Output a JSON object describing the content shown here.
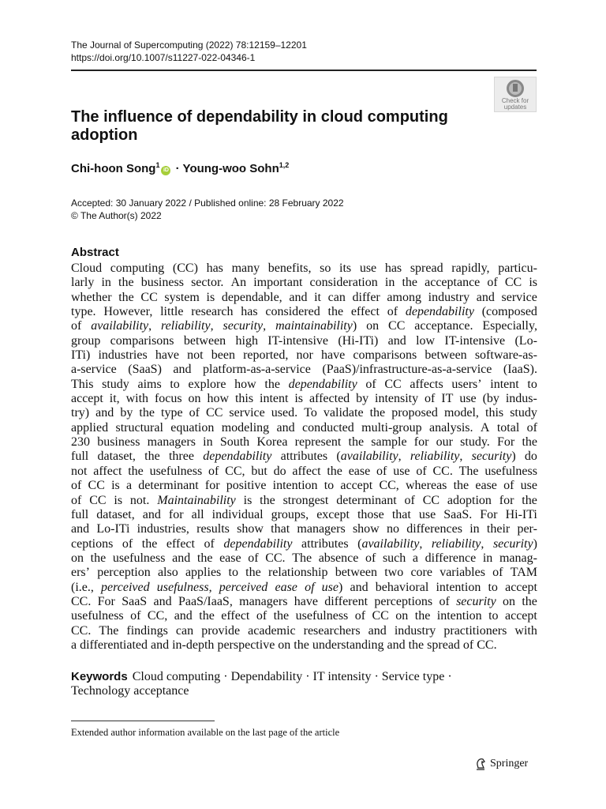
{
  "header": {
    "journal": "The Journal of Supercomputing (2022) 78:12159–12201",
    "doi": "https://doi.org/10.1007/s11227-022-04346-1"
  },
  "badge": {
    "line1": "Check for",
    "line2": "updates"
  },
  "title": "The influence of dependability in cloud computing adoption",
  "authors": [
    {
      "name": "Chi-hoon Song",
      "sup": "1",
      "orcid": true
    },
    {
      "name": "Young-woo Sohn",
      "sup": "1,2"
    }
  ],
  "author_separator": " · ",
  "orcid_label": "iD",
  "dates": {
    "line1": "Accepted: 30 January 2022 / Published online: 28 February 2022",
    "line2": "© The Author(s) 2022"
  },
  "abstract_heading": "Abstract",
  "abstract_lines": [
    [
      {
        "t": "Cloud computing (CC) has many benefits, so its use has spread rapidly, particu-"
      }
    ],
    [
      {
        "t": "larly in the business sector. An important consideration in the acceptance of CC is"
      }
    ],
    [
      {
        "t": "whether the CC system is dependable, and it can differ among industry and service"
      }
    ],
    [
      {
        "t": "type. However, little research has considered the effect of "
      },
      {
        "t": "dependability",
        "i": true
      },
      {
        "t": " (composed"
      }
    ],
    [
      {
        "t": "of "
      },
      {
        "t": "availability",
        "i": true
      },
      {
        "t": ", "
      },
      {
        "t": "reliability",
        "i": true
      },
      {
        "t": ", "
      },
      {
        "t": "security",
        "i": true
      },
      {
        "t": ", "
      },
      {
        "t": "maintainability",
        "i": true
      },
      {
        "t": ") on CC acceptance. Especially,"
      }
    ],
    [
      {
        "t": "group comparisons between high IT-intensive (Hi-ITi) and low IT-intensive (Lo-"
      }
    ],
    [
      {
        "t": "ITi) industries have not been reported, nor have comparisons between software-as-"
      }
    ],
    [
      {
        "t": "a-service (SaaS) and platform-as-a-service (PaaS)/infrastructure-as-a-service (IaaS)."
      }
    ],
    [
      {
        "t": "This study aims to explore how the "
      },
      {
        "t": "dependability",
        "i": true
      },
      {
        "t": " of CC affects users’ intent to"
      }
    ],
    [
      {
        "t": "accept it, with focus on how this intent is affected by intensity of IT use (by indus-"
      }
    ],
    [
      {
        "t": "try) and by the type of CC service used. To validate the proposed model, this study"
      }
    ],
    [
      {
        "t": "applied structural equation modeling and conducted multi-group analysis. A total of"
      }
    ],
    [
      {
        "t": "230 business managers in South Korea represent the sample for our study. For the"
      }
    ],
    [
      {
        "t": "full dataset, the three "
      },
      {
        "t": "dependability",
        "i": true
      },
      {
        "t": " attributes ("
      },
      {
        "t": "availability",
        "i": true
      },
      {
        "t": ", "
      },
      {
        "t": "reliability",
        "i": true
      },
      {
        "t": ", "
      },
      {
        "t": "security",
        "i": true
      },
      {
        "t": ") do"
      }
    ],
    [
      {
        "t": "not affect the usefulness of CC, but do affect the ease of use of CC. The usefulness"
      }
    ],
    [
      {
        "t": "of CC is a determinant for positive intention to accept CC, whereas the ease of use"
      }
    ],
    [
      {
        "t": "of CC is not. "
      },
      {
        "t": "Maintainability",
        "i": true
      },
      {
        "t": " is the strongest determinant of CC adoption for the"
      }
    ],
    [
      {
        "t": "full dataset, and for all individual groups, except those that use SaaS. For Hi-ITi"
      }
    ],
    [
      {
        "t": "and Lo-ITi industries, results show that managers show no differences in their per-"
      }
    ],
    [
      {
        "t": "ceptions of the effect of "
      },
      {
        "t": "dependability",
        "i": true
      },
      {
        "t": " attributes ("
      },
      {
        "t": "availability",
        "i": true
      },
      {
        "t": ", "
      },
      {
        "t": "reliability",
        "i": true
      },
      {
        "t": ", "
      },
      {
        "t": "security",
        "i": true
      },
      {
        "t": ")"
      }
    ],
    [
      {
        "t": "on the usefulness and the ease of CC. The absence of such a difference in manag-"
      }
    ],
    [
      {
        "t": "ers’ perception also applies to the relationship between two core variables of TAM"
      }
    ],
    [
      {
        "t": "(i.e., "
      },
      {
        "t": "perceived usefulness",
        "i": true
      },
      {
        "t": ", "
      },
      {
        "t": "perceived ease of use",
        "i": true
      },
      {
        "t": ") and behavioral intention to accept"
      }
    ],
    [
      {
        "t": "CC. For SaaS and PaaS/IaaS, managers have different perceptions of "
      },
      {
        "t": "security",
        "i": true
      },
      {
        "t": " on the"
      }
    ],
    [
      {
        "t": "usefulness of CC, and the effect of the usefulness of CC on the intention to accept"
      }
    ],
    [
      {
        "t": "CC. The findings can provide academic researchers and industry practitioners with"
      }
    ],
    [
      {
        "t": "a differentiated and in-depth perspective on the understanding and the spread of CC."
      }
    ]
  ],
  "keywords": {
    "heading": "Keywords",
    "line1": "Cloud computing · Dependability · IT intensity · Service type ·",
    "line2": "Technology acceptance"
  },
  "footnote": "Extended author information available on the last page of the article",
  "publisher": "Springer",
  "colors": {
    "orcid": "#a6ce39",
    "badge_bg": "#ececec"
  }
}
